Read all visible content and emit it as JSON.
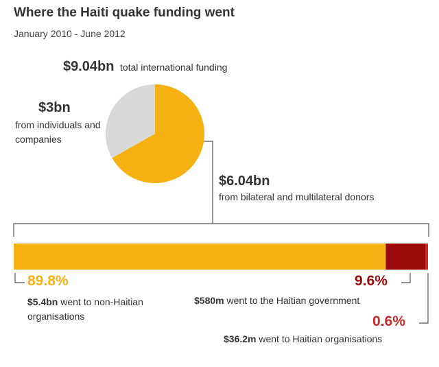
{
  "chart_data": [
    {
      "type": "pie",
      "title": "Where the Haiti quake funding went",
      "subtitle": "January 2010 - June 2012",
      "total": {
        "value": "$9.04bn",
        "label": "total international funding"
      },
      "slices": [
        {
          "value_text": "$3bn",
          "value": 3.0,
          "label": "from individuals and companies",
          "color": "#d8d8d8"
        },
        {
          "value_text": "$6.04bn",
          "value": 6.04,
          "label": "from bilateral and multilateral donors",
          "color": "#f5b212"
        }
      ]
    },
    {
      "type": "bar",
      "stacked": true,
      "orientation": "horizontal",
      "segments": [
        {
          "percent_text": "89.8%",
          "value": 89.8,
          "amount": "$5.4bn",
          "label": "went to non-Haitian organisations",
          "color": "#f5b212"
        },
        {
          "percent_text": "9.6%",
          "value": 9.6,
          "amount": "$580m",
          "label": "went to the Haitian government",
          "color": "#9b0a0a"
        },
        {
          "percent_text": "0.6%",
          "value": 0.6,
          "amount": "$36.2m",
          "label": "went to Haitian organisations",
          "color": "#c8282a"
        }
      ]
    }
  ]
}
